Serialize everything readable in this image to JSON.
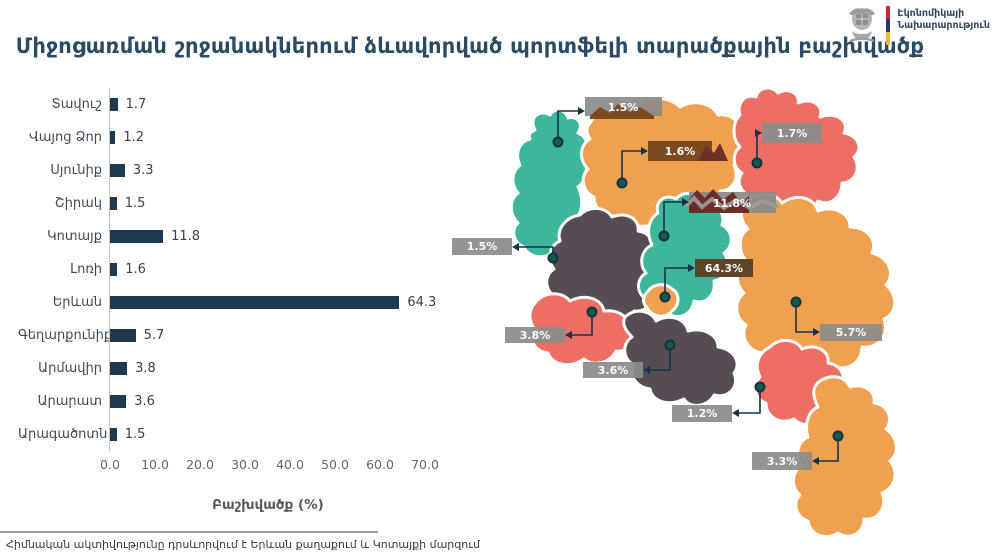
{
  "header": {
    "title": "Միջոցառման շրջանակներում ձևավորված պորտֆելի տարածքային բաշխվածք",
    "ministry": {
      "line1": "Էկոնոմիկայի",
      "line2": "Նախարարություն"
    },
    "flag_colors": {
      "red": "#cf2233",
      "blue": "#28356b",
      "orange": "#ecb73f"
    }
  },
  "chart_data": {
    "type": "bar",
    "orientation": "horizontal",
    "categories": [
      "Տավուշ",
      "Վայոց Ձոր",
      "Սյունիք",
      "Շիրակ",
      "Կոտայք",
      "Լոռի",
      "Երևան",
      "Գեղարքունիք",
      "Արմավիր",
      "Արարատ",
      "Արագածոտն"
    ],
    "values": [
      1.7,
      1.2,
      3.3,
      1.5,
      11.8,
      1.6,
      64.3,
      5.7,
      3.8,
      3.6,
      1.5
    ],
    "title": "",
    "xlabel": "Բաշխվածք (%)",
    "ylabel": "",
    "xlim": [
      0,
      70
    ],
    "xticks": [
      "0.0",
      "10.0",
      "20.0",
      "30.0",
      "40.0",
      "50.0",
      "60.0",
      "70.0"
    ],
    "grid": false,
    "legend": "none",
    "bar_color": "#1e3a4f"
  },
  "map": {
    "region_colors": {
      "teal": "#3eb69c",
      "orange": "#f0a150",
      "salmon": "#ed6e64",
      "gray": "#554d53"
    },
    "label_colors": {
      "gray": "#8b8b8b",
      "brown": "#7b4a20",
      "maroon": "#6b2d28",
      "darkbrown": "#5d4527"
    },
    "leader_color": "#16324a",
    "labels": [
      {
        "region": "Շիրակ",
        "text": "1.5%"
      },
      {
        "region": "Լոռի",
        "text": "1.6%"
      },
      {
        "region": "Տավուշ",
        "text": "1.7%"
      },
      {
        "region": "Կոտայք",
        "text": "11.8%"
      },
      {
        "region": "Արագածոտն",
        "text": "1.5%"
      },
      {
        "region": "Երևան",
        "text": "64.3%"
      },
      {
        "region": "Գեղարքունիք",
        "text": "5.7%"
      },
      {
        "region": "Արմավիր",
        "text": "3.8%"
      },
      {
        "region": "Արարատ",
        "text": "3.6%"
      },
      {
        "region": "Վայոց Ձոր",
        "text": "1.2%"
      },
      {
        "region": "Սյունիք",
        "text": "3.3%"
      }
    ]
  },
  "footer": {
    "note": "Հիմնական ակտիվությունը դրսևորվում է Երևան քաղաքում և Կոտայքի մարզում"
  }
}
